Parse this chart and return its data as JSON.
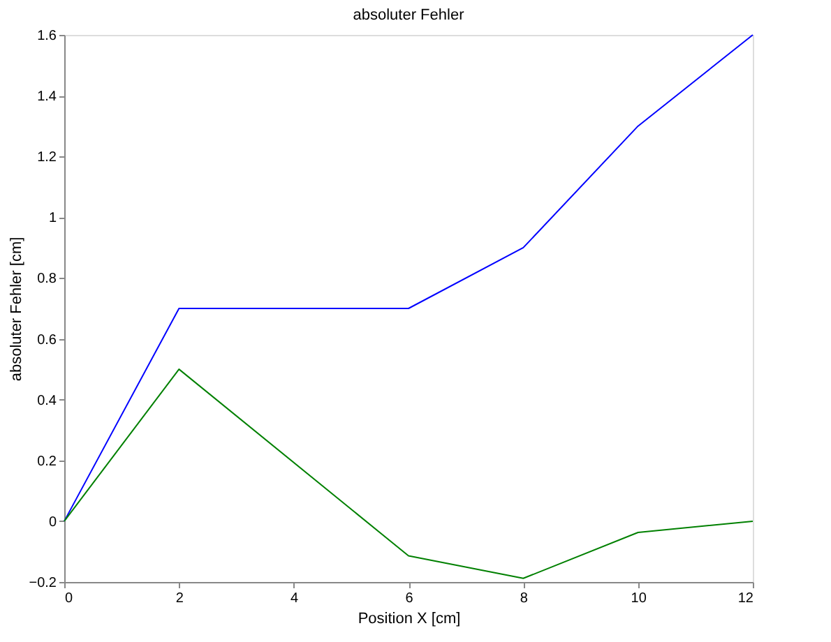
{
  "chart_data": {
    "type": "line",
    "title": "absoluter Fehler",
    "xlabel": "Position X [cm]",
    "ylabel": "absoluter Fehler [cm]",
    "x": [
      0,
      2,
      6,
      8,
      10,
      12
    ],
    "series": [
      {
        "color": "#0000ff",
        "values": [
          0,
          0.7,
          0.7,
          0.9,
          1.3,
          1.6
        ]
      },
      {
        "color": "#008000",
        "values": [
          0,
          0.5,
          -0.114,
          -0.188,
          -0.037,
          0
        ]
      }
    ],
    "xlim": [
      0,
      12
    ],
    "xticks": [
      0,
      2,
      4,
      6,
      8,
      10,
      12
    ],
    "ylim": [
      -0.2,
      1.6
    ],
    "yticks": [
      -0.2,
      0,
      0.2,
      0.4,
      0.6,
      0.8,
      1,
      1.2,
      1.4,
      1.6
    ],
    "grid": false,
    "legend": false,
    "marker": "none",
    "line_style": "solid"
  }
}
